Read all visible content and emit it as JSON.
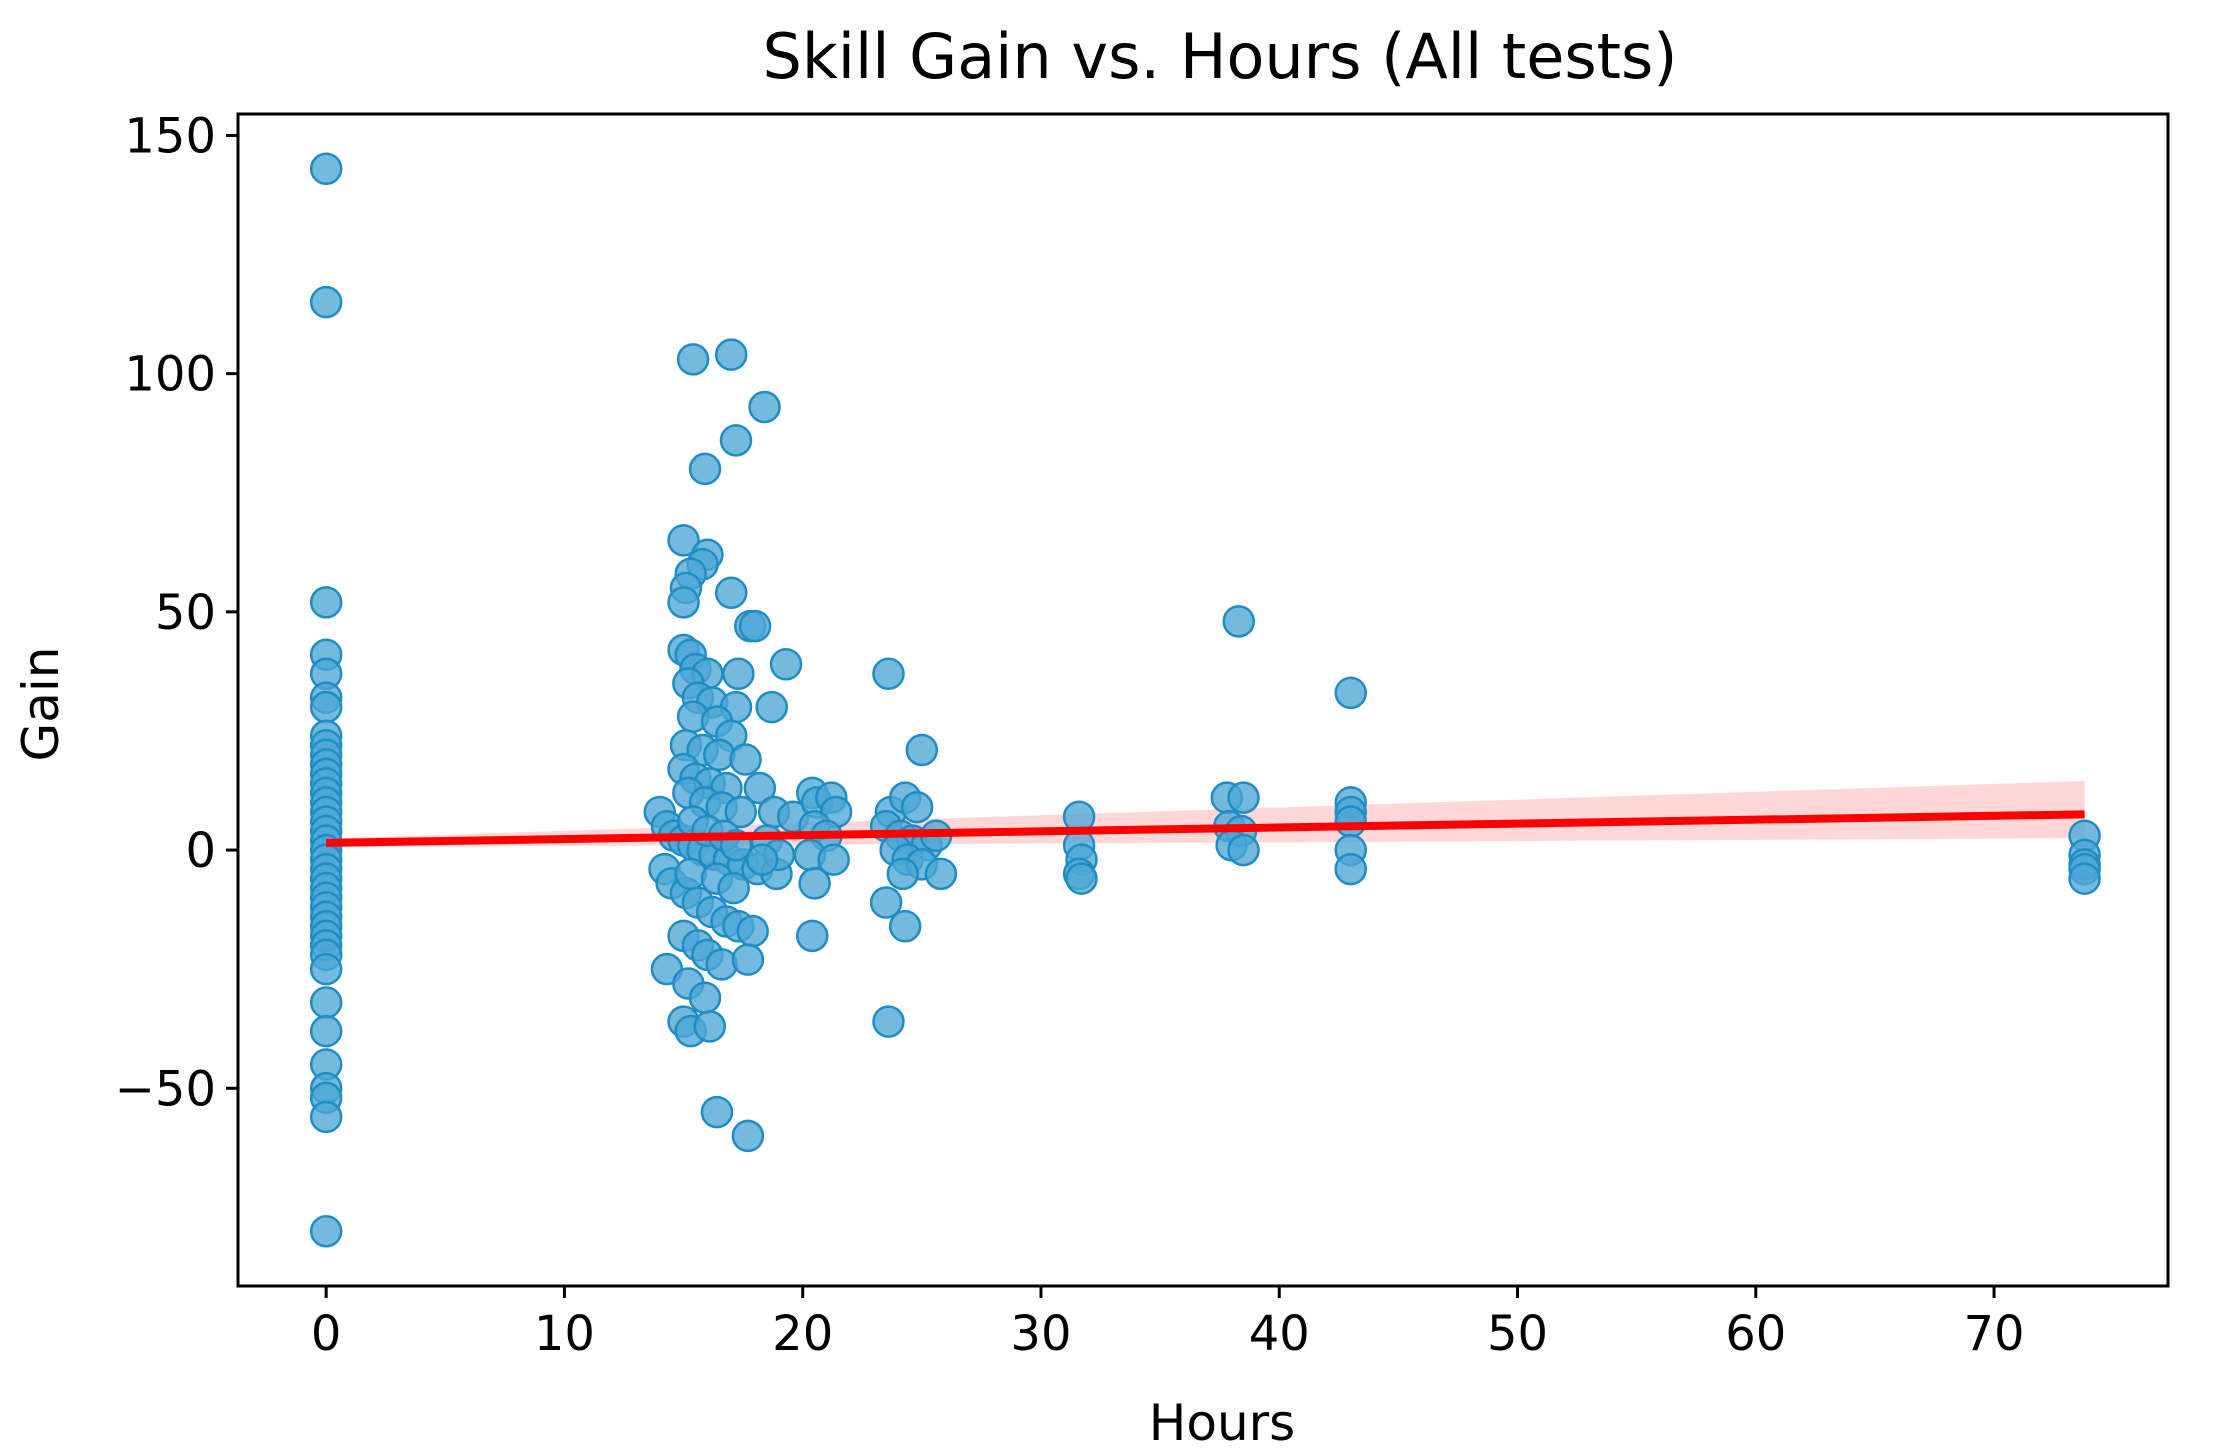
{
  "colors": {
    "points_fill": "#4da6d6",
    "points_stroke": "#1f8cc4",
    "fit_line": "#ff0000",
    "ci_band": "#ffb6b6"
  },
  "chart_data": {
    "type": "scatter",
    "title": "Skill Gain vs. Hours (All tests)",
    "xlabel": "Hours",
    "ylabel": "Gain",
    "xlim": [
      -3.7,
      77.3
    ],
    "ylim": [
      -91.5,
      154.5
    ],
    "xticks": [
      0,
      10,
      20,
      30,
      40,
      50,
      60,
      70
    ],
    "xtick_labels": [
      "0",
      "10",
      "20",
      "30",
      "40",
      "50",
      "60",
      "70"
    ],
    "yticks": [
      -50,
      0,
      50,
      100,
      150
    ],
    "ytick_labels": [
      "−50",
      "0",
      "50",
      "100",
      "150"
    ],
    "grid": false,
    "series": [
      {
        "type": "scatter",
        "points": [
          [
            0,
            143
          ],
          [
            0,
            115
          ],
          [
            0,
            52
          ],
          [
            0,
            41
          ],
          [
            0,
            37
          ],
          [
            0,
            32
          ],
          [
            0,
            30
          ],
          [
            0,
            24
          ],
          [
            0,
            22
          ],
          [
            0,
            20
          ],
          [
            0,
            18
          ],
          [
            0,
            16
          ],
          [
            0,
            14
          ],
          [
            0,
            12
          ],
          [
            0,
            10
          ],
          [
            0,
            8
          ],
          [
            0,
            6
          ],
          [
            0,
            4
          ],
          [
            0,
            2
          ],
          [
            0,
            0
          ],
          [
            0,
            -2
          ],
          [
            0,
            -4
          ],
          [
            0,
            -6
          ],
          [
            0,
            -8
          ],
          [
            0,
            -10
          ],
          [
            0,
            -12
          ],
          [
            0,
            -14
          ],
          [
            0,
            -16
          ],
          [
            0,
            -18
          ],
          [
            0,
            -20
          ],
          [
            0,
            -22
          ],
          [
            0,
            -25
          ],
          [
            0,
            -32
          ],
          [
            0,
            -38
          ],
          [
            0,
            -45
          ],
          [
            0,
            -50
          ],
          [
            0,
            -52
          ],
          [
            0,
            -56
          ],
          [
            0,
            -80
          ],
          [
            15.4,
            103
          ],
          [
            17.0,
            104
          ],
          [
            18.4,
            93
          ],
          [
            17.2,
            86
          ],
          [
            15.9,
            80
          ],
          [
            15.0,
            65
          ],
          [
            16.0,
            62
          ],
          [
            15.8,
            60
          ],
          [
            15.3,
            58
          ],
          [
            15.1,
            55
          ],
          [
            15.0,
            52
          ],
          [
            17.0,
            54
          ],
          [
            17.8,
            47
          ],
          [
            18.0,
            47
          ],
          [
            15.0,
            42
          ],
          [
            15.3,
            41
          ],
          [
            15.5,
            38
          ],
          [
            16.0,
            37
          ],
          [
            17.3,
            37
          ],
          [
            19.3,
            39
          ],
          [
            15.2,
            35
          ],
          [
            15.6,
            32
          ],
          [
            16.2,
            31
          ],
          [
            17.2,
            30
          ],
          [
            18.7,
            30
          ],
          [
            15.4,
            28
          ],
          [
            16.4,
            27
          ],
          [
            17.0,
            24
          ],
          [
            15.1,
            22
          ],
          [
            15.8,
            21
          ],
          [
            16.5,
            20
          ],
          [
            17.6,
            19
          ],
          [
            15.0,
            17
          ],
          [
            15.5,
            15
          ],
          [
            16.1,
            14
          ],
          [
            16.8,
            13
          ],
          [
            18.2,
            13
          ],
          [
            15.2,
            12
          ],
          [
            15.9,
            10
          ],
          [
            16.6,
            9
          ],
          [
            17.4,
            8
          ],
          [
            18.8,
            8
          ],
          [
            19.6,
            7
          ],
          [
            14.0,
            8
          ],
          [
            14.3,
            5
          ],
          [
            14.6,
            3
          ],
          [
            15.0,
            2
          ],
          [
            15.4,
            1
          ],
          [
            15.8,
            0
          ],
          [
            16.3,
            -1
          ],
          [
            16.9,
            -2
          ],
          [
            17.5,
            -3
          ],
          [
            18.1,
            -4
          ],
          [
            18.9,
            -5
          ],
          [
            14.2,
            -4
          ],
          [
            14.5,
            -7
          ],
          [
            15.1,
            -9
          ],
          [
            15.6,
            -11
          ],
          [
            16.2,
            -13
          ],
          [
            16.8,
            -15
          ],
          [
            17.3,
            -16
          ],
          [
            17.9,
            -17
          ],
          [
            15.0,
            -18
          ],
          [
            15.6,
            -20
          ],
          [
            16.0,
            -22
          ],
          [
            16.6,
            -24
          ],
          [
            17.7,
            -23
          ],
          [
            14.3,
            -25
          ],
          [
            15.2,
            -28
          ],
          [
            15.9,
            -31
          ],
          [
            15.0,
            -36
          ],
          [
            15.3,
            -38
          ],
          [
            16.1,
            -37
          ],
          [
            16.4,
            -55
          ],
          [
            17.7,
            -60
          ],
          [
            15.4,
            6
          ],
          [
            16.0,
            4
          ],
          [
            16.7,
            3
          ],
          [
            17.2,
            1
          ],
          [
            18.5,
            2
          ],
          [
            19.0,
            -1
          ],
          [
            15.3,
            -5
          ],
          [
            16.4,
            -6
          ],
          [
            17.1,
            -8
          ],
          [
            18.3,
            -2
          ],
          [
            20.4,
            12
          ],
          [
            20.6,
            10
          ],
          [
            21.2,
            11
          ],
          [
            21.4,
            8
          ],
          [
            20.5,
            5
          ],
          [
            21.0,
            3
          ],
          [
            20.3,
            -1
          ],
          [
            21.3,
            -2
          ],
          [
            20.5,
            -7
          ],
          [
            20.4,
            -18
          ],
          [
            23.6,
            37
          ],
          [
            23.7,
            8
          ],
          [
            24.3,
            11
          ],
          [
            24.8,
            9
          ],
          [
            23.5,
            5
          ],
          [
            24.1,
            3
          ],
          [
            24.6,
            2
          ],
          [
            25.2,
            1
          ],
          [
            23.9,
            0
          ],
          [
            24.4,
            -2
          ],
          [
            25.0,
            -3
          ],
          [
            25.8,
            -5
          ],
          [
            25.6,
            3
          ],
          [
            24.2,
            -5
          ],
          [
            23.5,
            -11
          ],
          [
            24.3,
            -16
          ],
          [
            23.6,
            -36
          ],
          [
            25.0,
            21
          ],
          [
            31.6,
            7
          ],
          [
            31.6,
            1
          ],
          [
            31.7,
            -2
          ],
          [
            31.6,
            -5
          ],
          [
            31.7,
            -6
          ],
          [
            37.8,
            11
          ],
          [
            38.5,
            11
          ],
          [
            37.9,
            5
          ],
          [
            38.4,
            4
          ],
          [
            38.0,
            1
          ],
          [
            38.5,
            0
          ],
          [
            38.3,
            48
          ],
          [
            43.0,
            33
          ],
          [
            43.0,
            10
          ],
          [
            43.0,
            8
          ],
          [
            43.0,
            6
          ],
          [
            43.0,
            0
          ],
          [
            43.0,
            -4
          ],
          [
            73.8,
            3
          ],
          [
            73.8,
            -1
          ],
          [
            73.8,
            -3
          ],
          [
            73.8,
            -4
          ],
          [
            73.8,
            -6
          ]
        ]
      },
      {
        "type": "regression",
        "x": [
          0,
          73.8
        ],
        "y": [
          1.5,
          7.5
        ],
        "ci_upper": [
          2.4,
          14.5
        ],
        "ci_lower": [
          0.6,
          2.5
        ]
      }
    ]
  }
}
